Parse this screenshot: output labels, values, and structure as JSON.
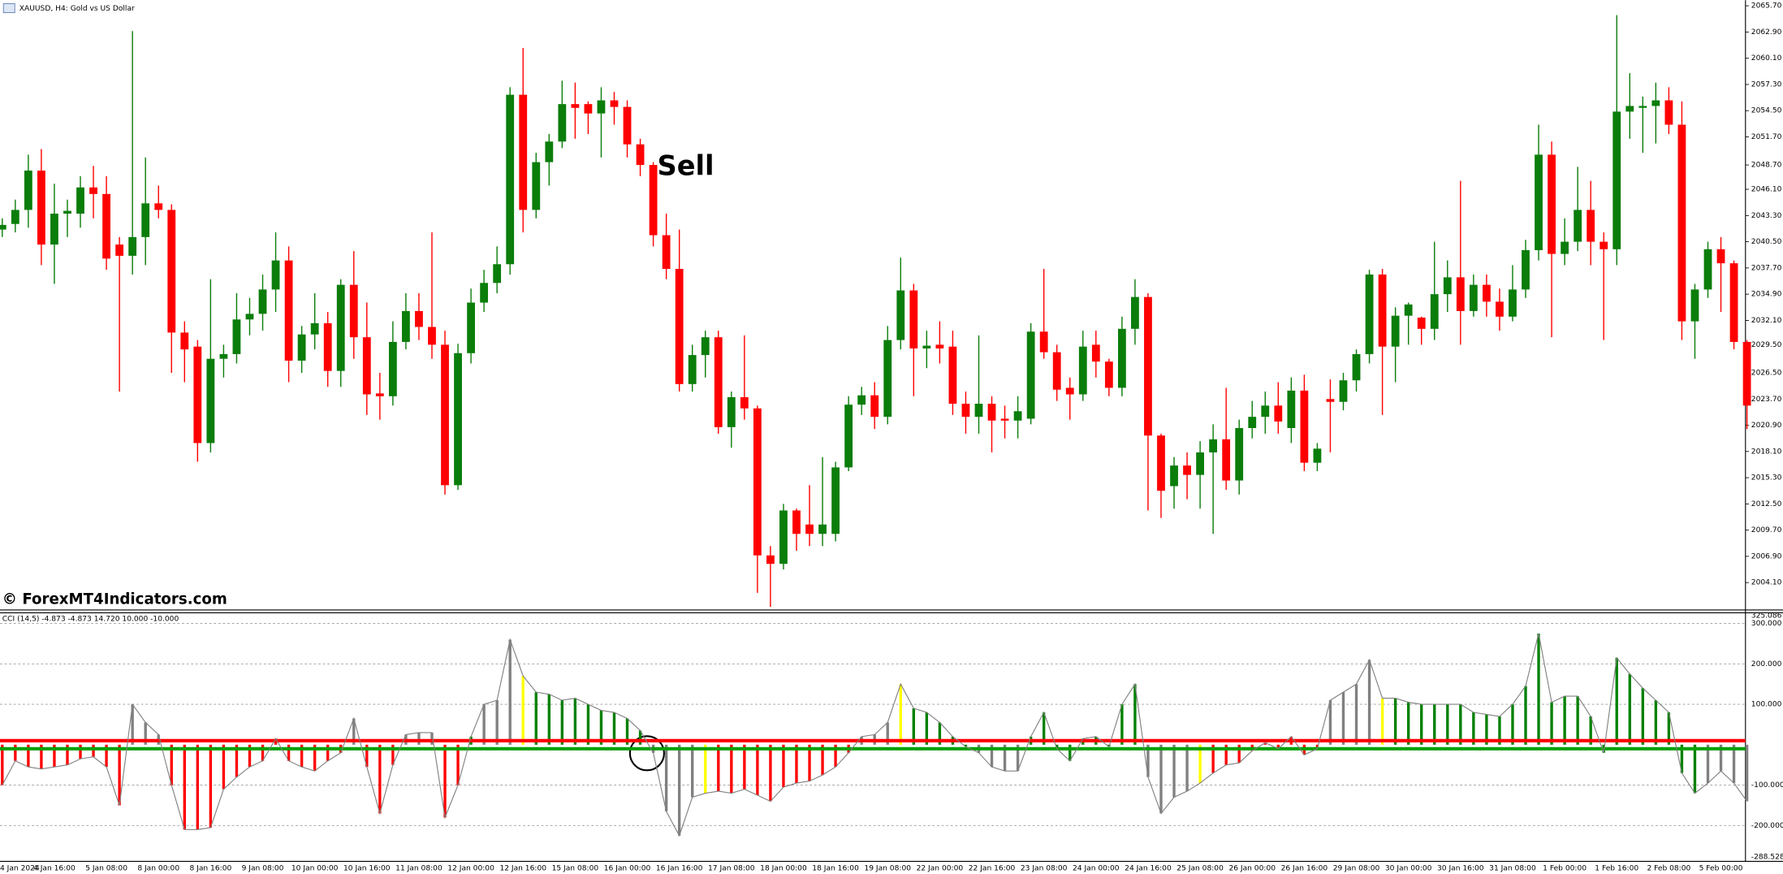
{
  "chart_data": [
    {
      "type": "candlestick",
      "title": "XAUUSD, H4:  Gold vs US Dollar",
      "annotations": [
        "Sell"
      ],
      "up_color": "#0a7d0a",
      "down_color": "#ff0000",
      "ylim": [
        2001.3,
        2066.3
      ],
      "yticks": [
        {
          "value": 2065.7,
          "label": "2065.70"
        },
        {
          "value": 2062.9,
          "label": "2062.90"
        },
        {
          "value": 2060.1,
          "label": "2060.10"
        },
        {
          "value": 2057.3,
          "label": "2057.30"
        },
        {
          "value": 2054.5,
          "label": "2054.50"
        },
        {
          "value": 2051.7,
          "label": "2051.70"
        },
        {
          "value": 2048.7,
          "label": "2048.70"
        },
        {
          "value": 2046.1,
          "label": "2046.10"
        },
        {
          "value": 2043.3,
          "label": "2043.30"
        },
        {
          "value": 2040.5,
          "label": "2040.50"
        },
        {
          "value": 2037.7,
          "label": "2037.70"
        },
        {
          "value": 2034.9,
          "label": "2034.90"
        },
        {
          "value": 2032.1,
          "label": "2032.10"
        },
        {
          "value": 2029.5,
          "label": "2029.50"
        },
        {
          "value": 2026.5,
          "label": "2026.50"
        },
        {
          "value": 2023.7,
          "label": "2023.70"
        },
        {
          "value": 2020.9,
          "label": "2020.90"
        },
        {
          "value": 2018.1,
          "label": "2018.10"
        },
        {
          "value": 2015.3,
          "label": "2015.30"
        },
        {
          "value": 2012.5,
          "label": "2012.50"
        },
        {
          "value": 2009.7,
          "label": "2009.70"
        },
        {
          "value": 2006.9,
          "label": "2006.90"
        },
        {
          "value": 2004.1,
          "label": "2004.10"
        }
      ],
      "categories": [
        "4 Jan 2024",
        null,
        null,
        null,
        "4 Jan 16:00",
        null,
        null,
        null,
        "5 Jan 08:00",
        null,
        null,
        null,
        "8 Jan 00:00",
        null,
        null,
        null,
        "8 Jan 16:00",
        null,
        null,
        null,
        "9 Jan 08:00",
        null,
        null,
        null,
        "10 Jan 00:00",
        null,
        null,
        null,
        "10 Jan 16:00",
        null,
        null,
        null,
        "11 Jan 08:00",
        null,
        null,
        null,
        "12 Jan 00:00",
        null,
        null,
        null,
        "12 Jan 16:00",
        null,
        null,
        null,
        "15 Jan 08:00",
        null,
        null,
        null,
        "16 Jan 00:00",
        null,
        null,
        null,
        "16 Jan 16:00",
        null,
        null,
        null,
        "17 Jan 08:00",
        null,
        null,
        null,
        "18 Jan 00:00",
        null,
        null,
        null,
        "18 Jan 16:00",
        null,
        null,
        null,
        "19 Jan 08:00",
        null,
        null,
        null,
        "22 Jan 00:00",
        null,
        null,
        null,
        "22 Jan 16:00",
        null,
        null,
        null,
        "23 Jan 08:00",
        null,
        null,
        null,
        "24 Jan 00:00",
        null,
        null,
        null,
        "24 Jan 16:00",
        null,
        null,
        null,
        "25 Jan 08:00",
        null,
        null,
        null,
        "26 Jan 00:00",
        null,
        null,
        null,
        "26 Jan 16:00",
        null,
        null,
        null,
        "29 Jan 08:00",
        null,
        null,
        null,
        "30 Jan 00:00",
        null,
        null,
        null,
        "30 Jan 16:00",
        null,
        null,
        null,
        "31 Jan 08:00",
        null,
        null,
        null,
        "1 Feb 00:00",
        null,
        null,
        null,
        "1 Feb 16:00",
        null,
        null,
        null,
        "2 Feb 08:00",
        null,
        null,
        null,
        "5 Feb 00:00",
        null,
        null
      ],
      "open": [
        2041.8,
        2042.4,
        2043.9,
        2048.1,
        2040.2,
        2043.5,
        2043.5,
        2046.3,
        2045.6,
        2040.2,
        2039,
        2041,
        2044.6,
        2043.9,
        2030.8,
        2029.3,
        2019,
        2028,
        2028.5,
        2032.2,
        2032.8,
        2035.4,
        2038.5,
        2027.8,
        2030.6,
        2031.8,
        2026.7,
        2035.9,
        2030.3,
        2024.3,
        2024,
        2029.8,
        2033.1,
        2031.4,
        2029.5,
        2014.5,
        2028.6,
        2034,
        2036.1,
        2038.1,
        2056.2,
        2043.9,
        2049,
        2051.2,
        2055.2,
        2055.2,
        2054.2,
        2055.6,
        2054.9,
        2050.9,
        2048.7,
        2041.2,
        2037.6,
        2025.3,
        2028.4,
        2030.3,
        2020.7,
        2023.9,
        2022.7,
        2007,
        2006.1,
        2011.8,
        2010.3,
        2009.3,
        2009.3,
        2016.4,
        2023.1,
        2024.1,
        2021.8,
        2030,
        2035.3,
        2029.1,
        2029.5,
        2029.3,
        2023.2,
        2021.8,
        2023.2,
        2021.6,
        2021.4,
        2021.6,
        2030.9,
        2028.7,
        2024.9,
        2024.2,
        2029.5,
        2027.7,
        2024.9,
        2031.2,
        2034.6,
        2019.8,
        2014.4,
        2016.6,
        2015.6,
        2018,
        2019.4,
        2015,
        2020.6,
        2021.8,
        2023,
        2020.6,
        2024.6,
        2016.9,
        2023.7,
        2023.4,
        2025.7,
        2028.5,
        2037,
        2029.3,
        2032.6,
        2032.4,
        2031.2,
        2034.9,
        2036.7,
        2033.1,
        2035.9,
        2034.1,
        2032.5,
        2035.4,
        2039.6,
        2049.8,
        2039.2,
        2040.5,
        2043.9,
        2040.5,
        2039.7,
        2054.4,
        2054.8,
        2055,
        2055.6,
        2053,
        2032,
        2035.4,
        2039.7,
        2038.2,
        2029.8
      ],
      "high": [
        2043,
        2045,
        2049.8,
        2050.4,
        2046.7,
        2045,
        2047.5,
        2048.6,
        2047.5,
        2041,
        2063,
        2049.5,
        2046.5,
        2044.5,
        2032,
        2030,
        2036.5,
        2029.5,
        2035,
        2034.5,
        2037,
        2041.5,
        2040,
        2031.5,
        2035,
        2033,
        2036.5,
        2039.5,
        2034,
        2026.5,
        2032,
        2035,
        2035,
        2041.5,
        2031,
        2029.6,
        2035.5,
        2037.5,
        2040,
        2057,
        2061.2,
        2050,
        2052,
        2057.7,
        2057.5,
        2055.5,
        2057,
        2056.5,
        2055.6,
        2051.5,
        2049,
        2043.5,
        2041.8,
        2029.5,
        2031,
        2031,
        2024.5,
        2030.5,
        2023,
        2008,
        2012.5,
        2012,
        2014.5,
        2017.5,
        2017,
        2024,
        2025,
        2025.5,
        2031.5,
        2038.8,
        2036,
        2031,
        2032,
        2031,
        2024.5,
        2030.5,
        2024,
        2023,
        2024,
        2031.8,
        2037.6,
        2029.5,
        2026,
        2031,
        2031,
        2028,
        2032.5,
        2036.5,
        2035,
        2020,
        2017.5,
        2018,
        2019.2,
        2021,
        2024.9,
        2021.5,
        2023.5,
        2024.5,
        2025.5,
        2026,
        2026.3,
        2019,
        2025.8,
        2026.5,
        2029,
        2037.5,
        2037.6,
        2033.5,
        2034,
        2032.5,
        2040.5,
        2038.5,
        2047,
        2037,
        2037,
        2035.5,
        2038,
        2040.7,
        2053,
        2051.2,
        2043,
        2048.5,
        2047,
        2041.5,
        2064.7,
        2058.5,
        2056,
        2057.5,
        2057,
        2055.5,
        2036,
        2040.5,
        2041,
        2038.5,
        2030
      ],
      "low": [
        2041,
        2041.5,
        2042,
        2038,
        2036,
        2041,
        2042,
        2043,
        2037.5,
        2024.5,
        2037,
        2038,
        2043,
        2026.5,
        2025.5,
        2017,
        2018,
        2026,
        2027.5,
        2030.5,
        2031,
        2033,
        2025.5,
        2026.5,
        2029,
        2025,
        2025,
        2028,
        2022,
        2021.5,
        2023,
        2029,
        2030,
        2028,
        2013.5,
        2014,
        2027.5,
        2033,
        2035,
        2037,
        2041.5,
        2043,
        2046.5,
        2050.5,
        2051.5,
        2052,
        2049.5,
        2053,
        2049.5,
        2047.5,
        2040,
        2036.5,
        2024.5,
        2024.5,
        2026,
        2020,
        2018.5,
        2021.5,
        2003,
        2001.5,
        2005.5,
        2007.5,
        2008,
        2008,
        2008.5,
        2016,
        2022,
        2020.5,
        2021,
        2029,
        2024,
        2027,
        2027.5,
        2022,
        2020,
        2020,
        2018,
        2019.5,
        2019.5,
        2021,
        2028,
        2023.5,
        2021.5,
        2023.5,
        2026,
        2024,
        2024,
        2029.5,
        2011.8,
        2011,
        2012,
        2013,
        2012,
        2009.3,
        2014,
        2013.5,
        2019.5,
        2020,
        2020,
        2019,
        2016,
        2016,
        2018,
        2022.5,
        2024.5,
        2027.5,
        2022,
        2025.5,
        2029.5,
        2029.5,
        2030,
        2033,
        2029.5,
        2032.5,
        2032.5,
        2031,
        2032,
        2034.5,
        2038.5,
        2030.3,
        2038,
        2039.5,
        2038,
        2030,
        2038,
        2051.5,
        2050,
        2051,
        2052,
        2030,
        2028,
        2034.5,
        2033,
        2029,
        2020.5
      ],
      "close": [
        2042.3,
        2043.9,
        2048.1,
        2040.2,
        2043.5,
        2043.8,
        2046.3,
        2045.6,
        2038.7,
        2039,
        2041,
        2044.6,
        2043.9,
        2030.8,
        2029,
        2019,
        2028,
        2028.5,
        2032.2,
        2032.8,
        2035.4,
        2038.5,
        2027.8,
        2030.6,
        2031.8,
        2026.7,
        2035.9,
        2030.3,
        2024.2,
        2024,
        2029.8,
        2033.1,
        2031.4,
        2029.5,
        2014.5,
        2028.6,
        2034,
        2036.1,
        2038.1,
        2056.2,
        2043.9,
        2049,
        2051.2,
        2055.2,
        2054.8,
        2054.2,
        2055.6,
        2054.9,
        2050.9,
        2048.7,
        2041.2,
        2037.6,
        2025.3,
        2028.4,
        2030.3,
        2020.7,
        2023.9,
        2022.7,
        2007,
        2006.1,
        2011.8,
        2009.3,
        2009.3,
        2010.3,
        2016.4,
        2023.1,
        2024.1,
        2021.8,
        2030,
        2035.3,
        2029.1,
        2029.4,
        2029.1,
        2023.2,
        2021.8,
        2023.2,
        2021.4,
        2021.4,
        2022.4,
        2030.9,
        2028.7,
        2024.7,
        2024.2,
        2029.3,
        2027.7,
        2024.9,
        2031.2,
        2034.6,
        2019.8,
        2013.9,
        2016.6,
        2015.6,
        2018,
        2019.4,
        2015,
        2020.6,
        2021.8,
        2023,
        2021.3,
        2024.6,
        2016.9,
        2018.4,
        2023.4,
        2025.7,
        2028.5,
        2037,
        2029.3,
        2032.6,
        2033.8,
        2031.2,
        2034.9,
        2036.7,
        2033.1,
        2035.9,
        2034.1,
        2032.5,
        2035.4,
        2039.6,
        2049.8,
        2039.2,
        2040.5,
        2043.9,
        2040.5,
        2039.7,
        2054.4,
        2055,
        2055,
        2055.6,
        2053,
        2032,
        2035.4,
        2039.7,
        2038.2,
        2029.8,
        2023
      ]
    },
    {
      "type": "histogram-line",
      "title": "CCI (14,5) -4.873 -4.873 14.720 10.000 -10.000",
      "ylim": [
        -288.528,
        325.086
      ],
      "yticks": [
        {
          "value": 300,
          "label": "300.000"
        },
        {
          "value": 200,
          "label": "200.000"
        },
        {
          "value": 100,
          "label": "100.000"
        },
        {
          "value": -100,
          "label": "-100.000"
        },
        {
          "value": -200,
          "label": "-200.000"
        }
      ],
      "grid": true,
      "line_color": "#808080",
      "levels": [
        10,
        -10
      ],
      "level_colors": [
        "#ff0000",
        "#00a000"
      ],
      "values": [
        -100,
        -40,
        -55,
        -60,
        -55,
        -50,
        -35,
        -30,
        -55,
        -150,
        100,
        55,
        25,
        -100,
        -210,
        -210,
        -205,
        -110,
        -80,
        -55,
        -40,
        15,
        -40,
        -55,
        -65,
        -40,
        -20,
        65,
        -55,
        -170,
        -50,
        25,
        30,
        30,
        -180,
        -100,
        20,
        100,
        110,
        260,
        170,
        130,
        125,
        110,
        115,
        100,
        85,
        80,
        65,
        35,
        -20,
        -165,
        -225,
        -130,
        -120,
        -115,
        -120,
        -110,
        -125,
        -140,
        -105,
        -95,
        -90,
        -75,
        -55,
        -20,
        20,
        25,
        55,
        150,
        90,
        80,
        55,
        20,
        -5,
        -20,
        -55,
        -65,
        -65,
        20,
        80,
        -10,
        -40,
        15,
        20,
        -5,
        100,
        150,
        -80,
        -170,
        -130,
        -115,
        -95,
        -70,
        -50,
        -45,
        -15,
        5,
        -10,
        20,
        -25,
        -10,
        110,
        130,
        150,
        210,
        115,
        115,
        105,
        100,
        100,
        100,
        100,
        80,
        75,
        70,
        100,
        145,
        275,
        105,
        120,
        120,
        70,
        -20,
        215,
        175,
        140,
        110,
        80,
        -70,
        -120,
        -95,
        -65,
        -95,
        -140
      ],
      "colors": [
        "#ff0000",
        "#ff0000",
        "#ff0000",
        "#ff0000",
        "#ff0000",
        "#ff0000",
        "#ff0000",
        "#ff0000",
        "#ff0000",
        "#ff0000",
        "#808080",
        "#808080",
        "#808080",
        "#ff0000",
        "#ff0000",
        "#ff0000",
        "#ff0000",
        "#ff0000",
        "#ff0000",
        "#ff0000",
        "#ff0000",
        "#ff0000",
        "#ff0000",
        "#ff0000",
        "#ff0000",
        "#ff0000",
        "#ff0000",
        "#808080",
        "#ff0000",
        "#ff0000",
        "#ff0000",
        "#808080",
        "#808080",
        "#808080",
        "#ff0000",
        "#ff0000",
        "#008000",
        "#808080",
        "#808080",
        "#808080",
        "#ffff00",
        "#008000",
        "#008000",
        "#008000",
        "#008000",
        "#008000",
        "#008000",
        "#008000",
        "#008000",
        "#008000",
        "#808080",
        "#808080",
        "#808080",
        "#808080",
        "#ffff00",
        "#ff0000",
        "#ff0000",
        "#ff0000",
        "#ff0000",
        "#ff0000",
        "#ff0000",
        "#ff0000",
        "#ff0000",
        "#ff0000",
        "#ff0000",
        "#ff0000",
        "#808080",
        "#808080",
        "#808080",
        "#ffff00",
        "#008000",
        "#008000",
        "#008000",
        "#008000",
        "#008000",
        "#808080",
        "#808080",
        "#808080",
        "#808080",
        "#008000",
        "#008000",
        "#008000",
        "#008000",
        "#008000",
        "#008000",
        "#008000",
        "#008000",
        "#008000",
        "#808080",
        "#808080",
        "#808080",
        "#808080",
        "#ffff00",
        "#ff0000",
        "#ff0000",
        "#ff0000",
        "#ff0000",
        "#ff0000",
        "#ff0000",
        "#ff0000",
        "#ff0000",
        "#ff0000",
        "#808080",
        "#808080",
        "#808080",
        "#808080",
        "#ffff00",
        "#008000",
        "#008000",
        "#008000",
        "#008000",
        "#008000",
        "#008000",
        "#008000",
        "#008000",
        "#008000",
        "#008000",
        "#008000",
        "#008000",
        "#008000",
        "#008000",
        "#008000",
        "#008000",
        "#008000",
        "#008000",
        "#008000",
        "#008000",
        "#008000",
        "#008000",
        "#008000",
        "#008000",
        "#808080",
        "#808080",
        "#808080",
        "#808080",
        "#ffff00",
        "#ff0000"
      ]
    }
  ],
  "watermark": "© ForexMT4Indicators.com"
}
